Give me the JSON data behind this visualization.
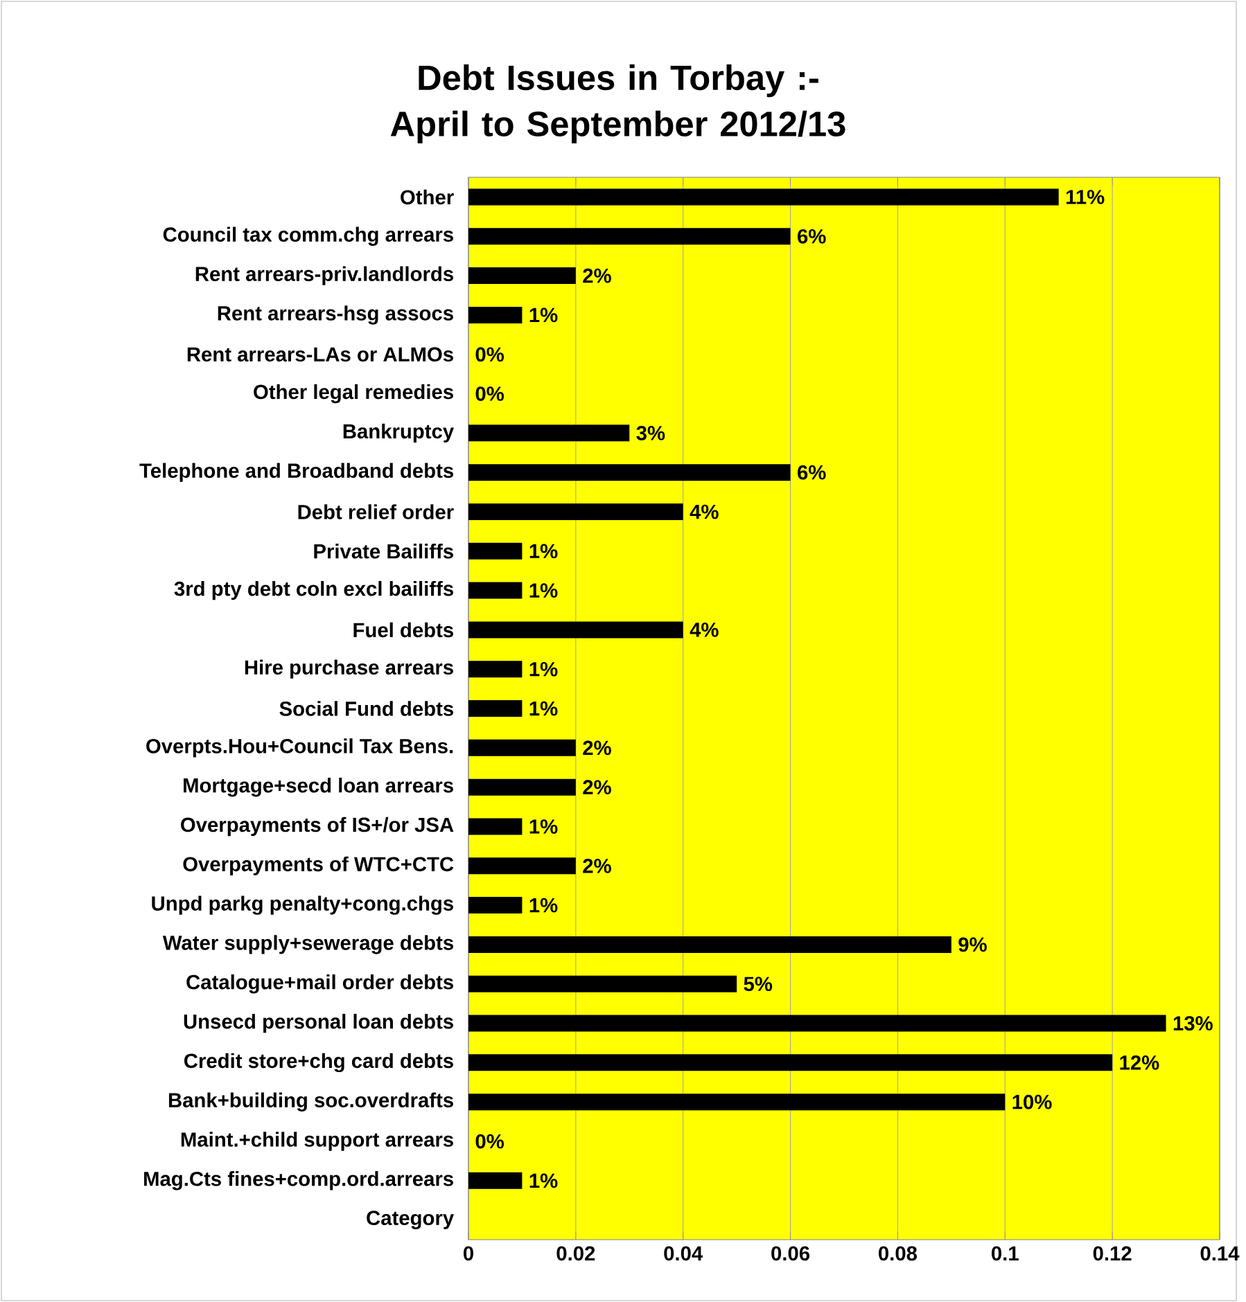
{
  "chart_data": {
    "type": "bar",
    "orientation": "horizontal",
    "title": "Debt Issues in Torbay :- April to September 2012/13",
    "categories": [
      "Other",
      "Council tax comm.chg arrears",
      "Rent arrears-priv.landlords",
      "Rent arrears-hsg assocs",
      "Rent arrears-LAs or ALMOs",
      "Other legal remedies",
      "Bankruptcy",
      "Telephone and Broadband debts",
      "Debt relief order",
      "Private Bailiffs",
      "3rd pty debt coln excl bailiffs",
      "Fuel debts",
      "Hire purchase arrears",
      "Social Fund debts",
      "Overpts.Hou+Council Tax Bens.",
      "Mortgage+secd loan arrears",
      "Overpayments of IS+/or JSA",
      "Overpayments of WTC+CTC",
      "Unpd parkg penalty+cong.chgs",
      "Water supply+sewerage debts",
      "Catalogue+mail order debts",
      "Unsecd personal loan debts",
      "Credit store+chg card debts",
      "Bank+building soc.overdrafts",
      "Maint.+child support arrears",
      "Mag.Cts fines+comp.ord.arrears",
      "Category"
    ],
    "values": [
      0.11,
      0.06,
      0.02,
      0.01,
      0,
      0,
      0.03,
      0.06,
      0.04,
      0.01,
      0.01,
      0.04,
      0.01,
      0.01,
      0.02,
      0.02,
      0.01,
      0.02,
      0.01,
      0.09,
      0.05,
      0.13,
      0.12,
      0.1,
      0,
      0.01,
      null
    ],
    "value_labels": [
      "11%",
      "6%",
      "2%",
      "1%",
      "0%",
      "0%",
      "3%",
      "6%",
      "4%",
      "1%",
      "1%",
      "4%",
      "1%",
      "1%",
      "2%",
      "2%",
      "1%",
      "2%",
      "1%",
      "9%",
      "5%",
      "13%",
      "12%",
      "10%",
      "0%",
      "1%",
      null
    ],
    "color": "#000000",
    "xlim": [
      0,
      0.14
    ],
    "xticks": [
      0,
      0.02,
      0.04,
      0.06,
      0.08,
      0.1,
      0.12,
      0.14
    ],
    "grid": "x"
  }
}
